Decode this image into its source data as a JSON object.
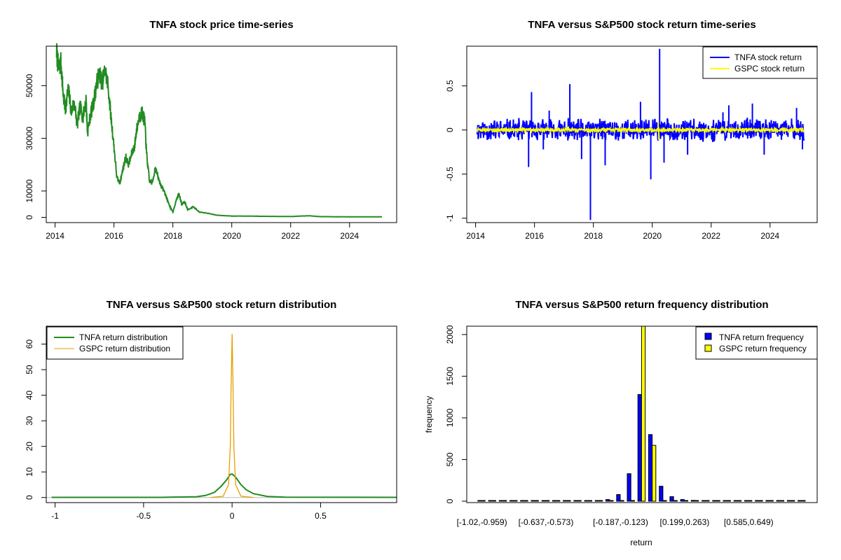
{
  "chart_data": [
    {
      "type": "line",
      "title": "TNFA stock price time-series",
      "xlabel": "",
      "ylabel": "",
      "xlim": [
        2013.7,
        2025.6
      ],
      "ylim": [
        -2000,
        65000
      ],
      "x_ticks": [
        2014,
        2016,
        2018,
        2020,
        2022,
        2024
      ],
      "y_ticks": [
        0,
        10000,
        30000,
        50000
      ],
      "color": "#228B22",
      "series": [
        {
          "values": [
            [
              2014.05,
              63000
            ],
            [
              2014.12,
              56000
            ],
            [
              2014.2,
              59000
            ],
            [
              2014.28,
              46000
            ],
            [
              2014.35,
              41000
            ],
            [
              2014.45,
              49000
            ],
            [
              2014.55,
              40000
            ],
            [
              2014.65,
              44000
            ],
            [
              2014.75,
              35000
            ],
            [
              2014.85,
              42000
            ],
            [
              2014.95,
              38000
            ],
            [
              2015.05,
              45000
            ],
            [
              2015.1,
              32000
            ],
            [
              2015.2,
              39000
            ],
            [
              2015.3,
              43000
            ],
            [
              2015.4,
              50000
            ],
            [
              2015.5,
              55000
            ],
            [
              2015.6,
              51000
            ],
            [
              2015.7,
              56000
            ],
            [
              2015.8,
              50000
            ],
            [
              2015.9,
              38000
            ],
            [
              2016.0,
              27000
            ],
            [
              2016.1,
              15000
            ],
            [
              2016.2,
              13000
            ],
            [
              2016.3,
              18000
            ],
            [
              2016.4,
              23000
            ],
            [
              2016.5,
              20000
            ],
            [
              2016.6,
              24000
            ],
            [
              2016.7,
              27000
            ],
            [
              2016.75,
              32000
            ],
            [
              2016.85,
              38000
            ],
            [
              2016.95,
              40000
            ],
            [
              2017.05,
              36000
            ],
            [
              2017.1,
              25000
            ],
            [
              2017.2,
              14000
            ],
            [
              2017.3,
              13000
            ],
            [
              2017.4,
              19000
            ],
            [
              2017.5,
              15000
            ],
            [
              2017.6,
              12000
            ],
            [
              2017.7,
              10000
            ],
            [
              2017.8,
              7000
            ],
            [
              2017.9,
              4000
            ],
            [
              2018.0,
              2000
            ],
            [
              2018.1,
              6000
            ],
            [
              2018.2,
              9000
            ],
            [
              2018.3,
              5000
            ],
            [
              2018.4,
              6000
            ],
            [
              2018.5,
              3000
            ],
            [
              2018.7,
              4000
            ],
            [
              2018.9,
              2000
            ],
            [
              2019.2,
              1500
            ],
            [
              2019.5,
              800
            ],
            [
              2020.0,
              500
            ],
            [
              2021.0,
              400
            ],
            [
              2022.0,
              300
            ],
            [
              2022.6,
              600
            ],
            [
              2023.0,
              250
            ],
            [
              2024.0,
              200
            ],
            [
              2025.1,
              200
            ]
          ]
        }
      ]
    },
    {
      "type": "line",
      "title": "TNFA versus S&P500 stock return time-series",
      "xlabel": "",
      "ylabel": "",
      "xlim": [
        2013.7,
        2025.6
      ],
      "ylim": [
        -1.05,
        0.95
      ],
      "x_ticks": [
        2014,
        2016,
        2018,
        2020,
        2022,
        2024
      ],
      "y_ticks": [
        -1.0,
        -0.5,
        0.0,
        0.5
      ],
      "legend_position": "top-right",
      "series": [
        {
          "name": "TNFA stock return",
          "color": "#0000FF",
          "spikes": [
            [
              2015.9,
              0.43
            ],
            [
              2015.8,
              -0.42
            ],
            [
              2016.3,
              -0.22
            ],
            [
              2016.5,
              0.22
            ],
            [
              2017.2,
              0.52
            ],
            [
              2017.6,
              -0.33
            ],
            [
              2017.9,
              -1.02
            ],
            [
              2018.4,
              -0.4
            ],
            [
              2019.6,
              0.32
            ],
            [
              2019.95,
              -0.56
            ],
            [
              2020.25,
              0.92
            ],
            [
              2020.4,
              -0.37
            ],
            [
              2021.2,
              -0.28
            ],
            [
              2022.4,
              0.2
            ],
            [
              2022.6,
              0.28
            ],
            [
              2023.4,
              0.3
            ],
            [
              2023.8,
              -0.28
            ],
            [
              2024.9,
              0.25
            ],
            [
              2025.1,
              -0.22
            ]
          ]
        },
        {
          "name": "GSPC stock return",
          "color": "#FFFF00",
          "spikes": [
            [
              2020.2,
              0.09
            ],
            [
              2020.22,
              -0.11
            ]
          ]
        }
      ]
    },
    {
      "type": "line",
      "title": "TNFA versus S&P500 stock return distribution",
      "xlabel": "",
      "ylabel": "",
      "xlim": [
        -1.05,
        0.93
      ],
      "ylim": [
        -2,
        67
      ],
      "x_ticks": [
        -1.0,
        -0.5,
        0.0,
        0.5
      ],
      "y_ticks": [
        0,
        10,
        20,
        30,
        40,
        50,
        60
      ],
      "legend_position": "top-left",
      "series": [
        {
          "name": "TNFA return distribution",
          "color": "#228B22",
          "values": [
            [
              -1.02,
              0.05
            ],
            [
              -0.4,
              0.05
            ],
            [
              -0.2,
              0.3
            ],
            [
              -0.15,
              0.8
            ],
            [
              -0.1,
              2
            ],
            [
              -0.06,
              4.5
            ],
            [
              -0.03,
              7
            ],
            [
              -0.01,
              9
            ],
            [
              0.0,
              9.2
            ],
            [
              0.02,
              8
            ],
            [
              0.05,
              5
            ],
            [
              0.08,
              3
            ],
            [
              0.12,
              1.5
            ],
            [
              0.2,
              0.4
            ],
            [
              0.3,
              0.1
            ],
            [
              0.93,
              0.05
            ]
          ]
        },
        {
          "name": "GSPC return distribution",
          "color": "#E69F00",
          "values": [
            [
              -0.12,
              0
            ],
            [
              -0.05,
              0.5
            ],
            [
              -0.02,
              5
            ],
            [
              -0.01,
              20
            ],
            [
              -0.005,
              45
            ],
            [
              0.0,
              64
            ],
            [
              0.005,
              45
            ],
            [
              0.01,
              20
            ],
            [
              0.02,
              5
            ],
            [
              0.05,
              0.5
            ],
            [
              0.12,
              0
            ]
          ]
        }
      ]
    },
    {
      "type": "bar",
      "title": "TNFA versus S&P500 return frequency distribution",
      "xlabel": "return",
      "ylabel": "frequency",
      "ylim": [
        0,
        2100
      ],
      "y_ticks": [
        0,
        500,
        1000,
        1500,
        2000
      ],
      "x_tick_labels": [
        "[-1.02,-0.959)",
        "[-0.637,-0.573)",
        "[-0.187,-0.123)",
        "[0.199,0.263)",
        "[0.585,0.649)"
      ],
      "x_tick_bins": [
        0,
        6,
        13,
        19,
        25
      ],
      "bin_count": 31,
      "legend_position": "top-right",
      "series": [
        {
          "name": "TNFA return frequency",
          "color": "#0000FF",
          "values": [
            2,
            2,
            2,
            2,
            2,
            2,
            2,
            2,
            2,
            3,
            4,
            8,
            20,
            80,
            330,
            1280,
            800,
            180,
            55,
            20,
            10,
            6,
            4,
            3,
            2,
            2,
            2,
            2,
            2,
            2,
            2
          ]
        },
        {
          "name": "GSPC return frequency",
          "color": "#FFFF00",
          "values": [
            0,
            0,
            0,
            0,
            0,
            0,
            0,
            0,
            0,
            0,
            0,
            0,
            0,
            0,
            0,
            2100,
            670,
            5,
            0,
            0,
            0,
            0,
            0,
            0,
            0,
            0,
            0,
            0,
            0,
            0,
            0
          ]
        }
      ]
    }
  ]
}
